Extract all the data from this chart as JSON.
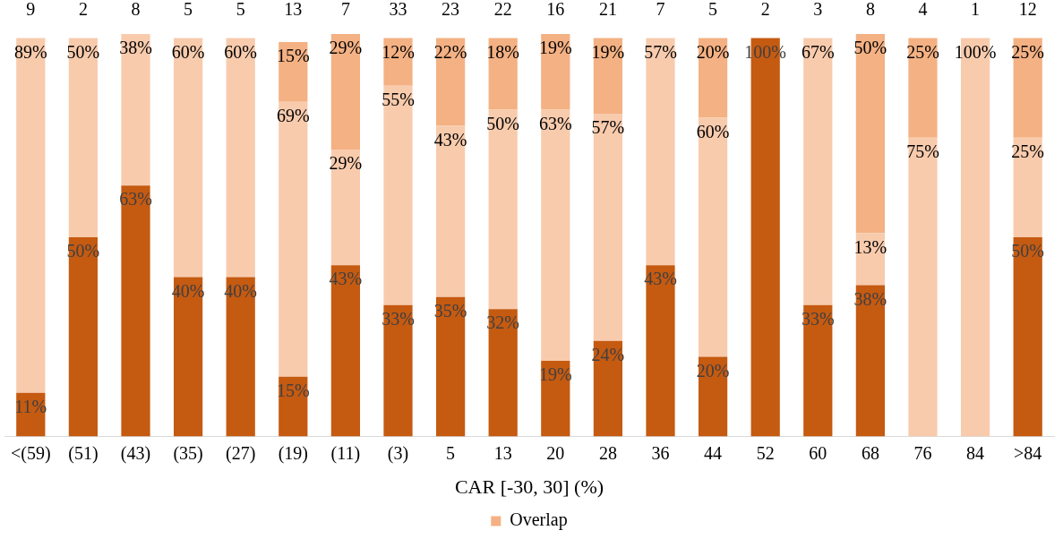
{
  "chart_data": {
    "type": "bar",
    "stacked": true,
    "xlabel": "CAR [-30, 30] (%)",
    "categories": [
      "<(59)",
      "(51)",
      "(43)",
      "(35)",
      "(27)",
      "(19)",
      "(11)",
      "(3)",
      "5",
      "13",
      "20",
      "28",
      "36",
      "44",
      "52",
      "60",
      "68",
      "76",
      "84",
      ">84"
    ],
    "series": [
      {
        "color": "#c55a11",
        "values": [
          11,
          50,
          63,
          40,
          40,
          15,
          43,
          33,
          35,
          32,
          19,
          24,
          43,
          20,
          100,
          33,
          38,
          0,
          0,
          50
        ],
        "value_labels": [
          "11%",
          "50%",
          "63%",
          "40%",
          "40%",
          "15%",
          "43%",
          "33%",
          "35%",
          "32%",
          "19%",
          "24%",
          "43%",
          "20%",
          "100%",
          "33%",
          "38%",
          null,
          null,
          "50%"
        ]
      },
      {
        "color": "#f8cbad",
        "values": [
          89,
          50,
          38,
          60,
          60,
          69,
          29,
          55,
          43,
          50,
          63,
          57,
          57,
          60,
          0,
          67,
          13,
          75,
          100,
          25
        ],
        "value_labels": [
          "89%",
          "50%",
          "38%",
          "60%",
          "60%",
          "69%",
          "29%",
          "55%",
          "43%",
          "50%",
          "63%",
          "57%",
          "57%",
          "60%",
          null,
          "67%",
          "13%",
          "75%",
          "100%",
          "25%"
        ]
      },
      {
        "name": "Overlap",
        "color": "#f4b183",
        "values": [
          0,
          0,
          0,
          0,
          0,
          15,
          29,
          12,
          22,
          18,
          19,
          19,
          0,
          20,
          0,
          0,
          50,
          25,
          0,
          25
        ],
        "value_labels": [
          null,
          null,
          null,
          null,
          null,
          "15%",
          "29%",
          "12%",
          "22%",
          "18%",
          "19%",
          "19%",
          null,
          "20%",
          null,
          null,
          "50%",
          "25%",
          null,
          "25%"
        ]
      }
    ],
    "annotations": [
      "9",
      "2",
      "8",
      "5",
      "5",
      "13",
      "7",
      "33",
      "23",
      "22",
      "16",
      "21",
      "7",
      "5",
      "2",
      "3",
      "8",
      "4",
      "1",
      "12"
    ],
    "legend": "bottom",
    "grid": false
  }
}
